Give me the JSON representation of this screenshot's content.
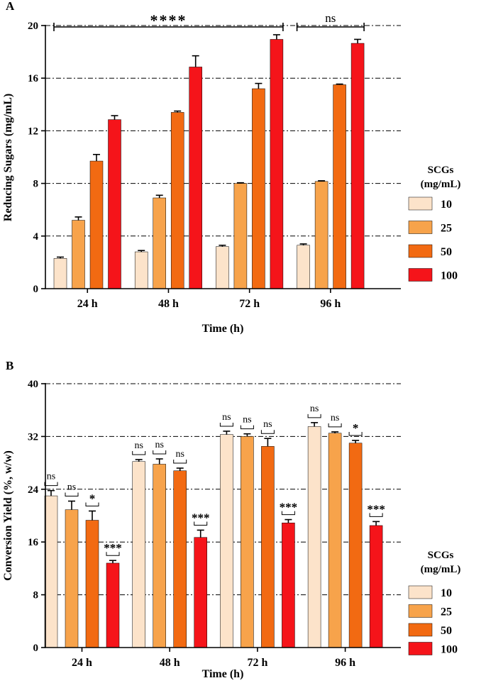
{
  "chart_data": [
    {
      "id": "A",
      "type": "bar",
      "panel_label": "A",
      "xlabel": "Time (h)",
      "ylabel": "Reducing Sugars (mg/mL)",
      "ylim": [
        0,
        20
      ],
      "yticks": [
        0,
        4,
        8,
        12,
        16,
        20
      ],
      "categories": [
        "24 h",
        "48 h",
        "72 h",
        "96 h"
      ],
      "series": [
        {
          "name": "10",
          "color": "#FCE3CA",
          "values": [
            2.3,
            2.8,
            3.2,
            3.3
          ],
          "errors": [
            0.1,
            0.1,
            0.1,
            0.1
          ]
        },
        {
          "name": "25",
          "color": "#F7A34B",
          "values": [
            5.2,
            6.9,
            8.0,
            8.15
          ],
          "errors": [
            0.25,
            0.2,
            0.05,
            0.05
          ]
        },
        {
          "name": "50",
          "color": "#F26A12",
          "values": [
            9.7,
            13.4,
            15.2,
            15.5
          ],
          "errors": [
            0.5,
            0.1,
            0.4,
            0.05
          ]
        },
        {
          "name": "100",
          "color": "#F5141A",
          "values": [
            12.85,
            16.85,
            18.95,
            18.65
          ],
          "errors": [
            0.3,
            0.85,
            0.35,
            0.3
          ]
        }
      ],
      "legend_title": [
        "SCGs",
        "(mg/mL)"
      ],
      "comparisons": [
        {
          "label": "****",
          "from_category": 0,
          "to_category": 2
        },
        {
          "label": "ns",
          "from_category": 3,
          "to_category": 3
        }
      ]
    },
    {
      "id": "B",
      "type": "bar",
      "panel_label": "B",
      "xlabel": "Time (h)",
      "ylabel": "Conversion Yield (%, w/w)",
      "ylim": [
        0,
        40
      ],
      "yticks": [
        0,
        8,
        16,
        24,
        32,
        40
      ],
      "categories": [
        "24 h",
        "48 h",
        "72 h",
        "96 h"
      ],
      "series": [
        {
          "name": "10",
          "color": "#FCE3CA",
          "values": [
            23.0,
            28.2,
            32.3,
            33.5
          ],
          "errors": [
            0.8,
            0.3,
            0.5,
            0.6
          ]
        },
        {
          "name": "25",
          "color": "#F7A34B",
          "values": [
            20.9,
            27.8,
            32.0,
            32.5
          ],
          "errors": [
            1.3,
            0.8,
            0.4,
            0.2
          ]
        },
        {
          "name": "50",
          "color": "#F26A12",
          "values": [
            19.3,
            26.8,
            30.5,
            31.0
          ],
          "errors": [
            1.4,
            0.4,
            1.2,
            0.4
          ]
        },
        {
          "name": "100",
          "color": "#F5141A",
          "values": [
            12.8,
            16.7,
            18.9,
            18.5
          ],
          "errors": [
            0.4,
            1.1,
            0.5,
            0.6
          ]
        }
      ],
      "annotations": [
        [
          "ns",
          "ns",
          "*",
          "***"
        ],
        [
          "ns",
          "ns",
          "ns",
          "***"
        ],
        [
          "ns",
          "ns",
          "ns",
          "***"
        ],
        [
          "ns",
          "ns",
          "*",
          "***"
        ]
      ],
      "legend_title": [
        "SCGs",
        "(mg/mL)"
      ]
    }
  ]
}
